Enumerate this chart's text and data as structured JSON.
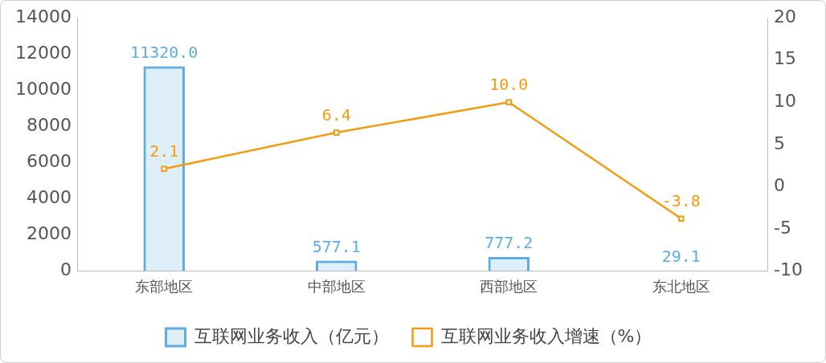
{
  "chart_data": {
    "type": "bar",
    "categories": [
      "东部地区",
      "中部地区",
      "西部地区",
      "东北地区"
    ],
    "series": [
      {
        "name": "互联网业务收入（亿元）",
        "color": "#5dade2",
        "values": [
          11320,
          577.1,
          777.2,
          29.1
        ],
        "value_labels": [
          "11320.0",
          "577.1",
          "777.2",
          "29.1"
        ]
      },
      {
        "name": "互联网业务收入增速（%）",
        "type": "line",
        "axis": "y2",
        "color": "#f39c12",
        "marker": "square",
        "values": [
          2.1,
          6.4,
          10.0,
          -3.8
        ],
        "value_labels": [
          "2.1",
          "6.4",
          "10.0",
          "-3.8"
        ]
      }
    ],
    "ylim": [
      0,
      14000
    ],
    "yticks": [
      0,
      2000,
      4000,
      6000,
      8000,
      10000,
      12000,
      14000
    ],
    "y2lim": [
      -10,
      20
    ],
    "y2ticks": [
      -10,
      -5,
      0,
      5,
      10,
      15,
      20
    ],
    "grid": false,
    "legend": "bottom"
  }
}
